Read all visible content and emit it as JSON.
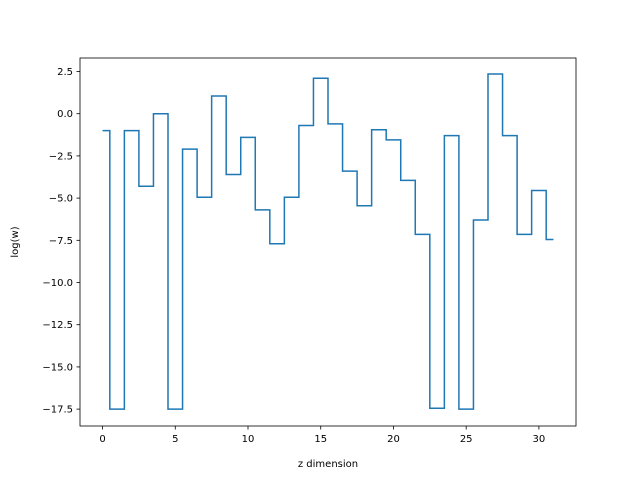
{
  "chart_data": {
    "type": "line",
    "drawstyle": "steps-mid",
    "title": "",
    "xlabel": "z dimension",
    "ylabel": "log(w)",
    "xlim": [
      -1.55,
      32.55
    ],
    "ylim": [
      -18.5,
      3.3
    ],
    "xticks": [
      0,
      5,
      10,
      15,
      20,
      25,
      30
    ],
    "xtick_labels": [
      "0",
      "5",
      "10",
      "15",
      "20",
      "25",
      "30"
    ],
    "yticks": [
      2.5,
      0.0,
      -2.5,
      -5.0,
      -7.5,
      -10.0,
      -12.5,
      -15.0,
      -17.5
    ],
    "ytick_labels": [
      "2.5",
      "0.0",
      "−2.5",
      "−5.0",
      "−7.5",
      "−10.0",
      "−12.5",
      "−15.0",
      "−17.5"
    ],
    "grid": false,
    "series": [
      {
        "color": "#1f77b4",
        "x": [
          0,
          1,
          2,
          3,
          4,
          5,
          6,
          7,
          8,
          9,
          10,
          11,
          12,
          13,
          14,
          15,
          16,
          17,
          18,
          19,
          20,
          21,
          22,
          23,
          24,
          25,
          26,
          27,
          28,
          29,
          30,
          31
        ],
        "y": [
          -1.0,
          -17.5,
          -1.0,
          -4.3,
          0.0,
          -17.5,
          -2.1,
          -4.95,
          1.05,
          -3.6,
          -1.4,
          -5.7,
          -7.7,
          -4.95,
          -0.7,
          2.1,
          -0.6,
          -3.4,
          -5.45,
          -0.95,
          -1.55,
          -3.95,
          -7.15,
          -17.45,
          -1.3,
          -17.5,
          -6.3,
          2.35,
          -1.3,
          -7.15,
          -4.55,
          -7.45
        ]
      }
    ]
  }
}
